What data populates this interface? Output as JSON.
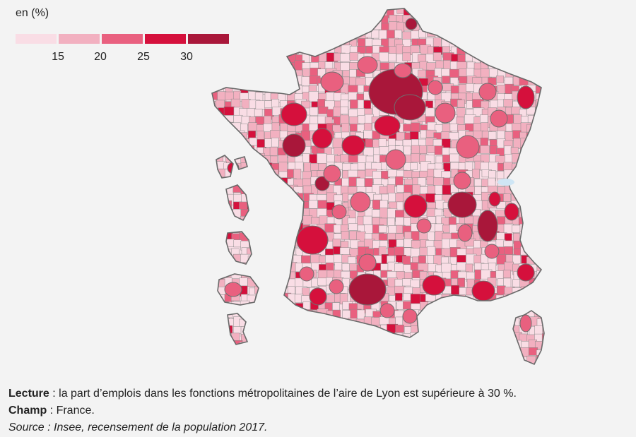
{
  "legend": {
    "title": "en (%)",
    "ticks": [
      "15",
      "20",
      "25",
      "30"
    ],
    "colors": [
      "#f9dde5",
      "#f2b0c0",
      "#e9607f",
      "#d5103c",
      "#a9173a"
    ]
  },
  "map": {
    "border_color": "#6a6a6a",
    "water_color": "#cfe6f5"
  },
  "notes": {
    "lecture_label": "Lecture",
    "lecture_text": " : la part d’emplois dans les fonctions métropolitaines de l’aire de Lyon est supérieure à 30 %.",
    "champ_label": "Champ",
    "champ_text": " : France.",
    "source": "Source : Insee, recensement de la population 2017."
  }
}
